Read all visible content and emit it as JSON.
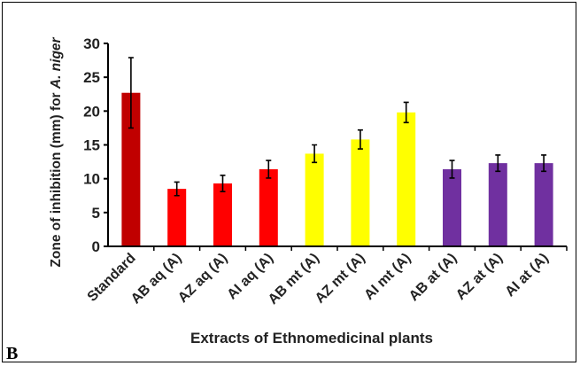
{
  "chart_data": {
    "type": "bar",
    "title": "",
    "xlabel": "Extracts of Ethnomedicinal plants",
    "ylabel_prefix": "Zone of inhibition (mm) for ",
    "ylabel_species": "A. niger",
    "ylim": [
      0,
      30
    ],
    "yticks": [
      "0",
      "5",
      "10",
      "15",
      "20",
      "25",
      "30"
    ],
    "grid": false,
    "panel_label": "B",
    "categories": [
      "Standard",
      "AB aq (A)",
      "AZ aq  (A)",
      "AI aq (A)",
      "AB mt (A)",
      "AZ mt (A)",
      "AI mt (A)",
      "AB at (A)",
      "AZ at (A)",
      "AI at (A)"
    ],
    "values": [
      22.7,
      8.5,
      9.3,
      11.4,
      13.7,
      15.8,
      19.8,
      11.4,
      12.3,
      12.3
    ],
    "errors": [
      5.2,
      1.0,
      1.2,
      1.3,
      1.3,
      1.4,
      1.5,
      1.3,
      1.2,
      1.2
    ],
    "colors": [
      "#c00000",
      "#ff0000",
      "#ff0000",
      "#ff0000",
      "#ffff00",
      "#ffff00",
      "#ffff00",
      "#7030a0",
      "#7030a0",
      "#7030a0"
    ]
  }
}
